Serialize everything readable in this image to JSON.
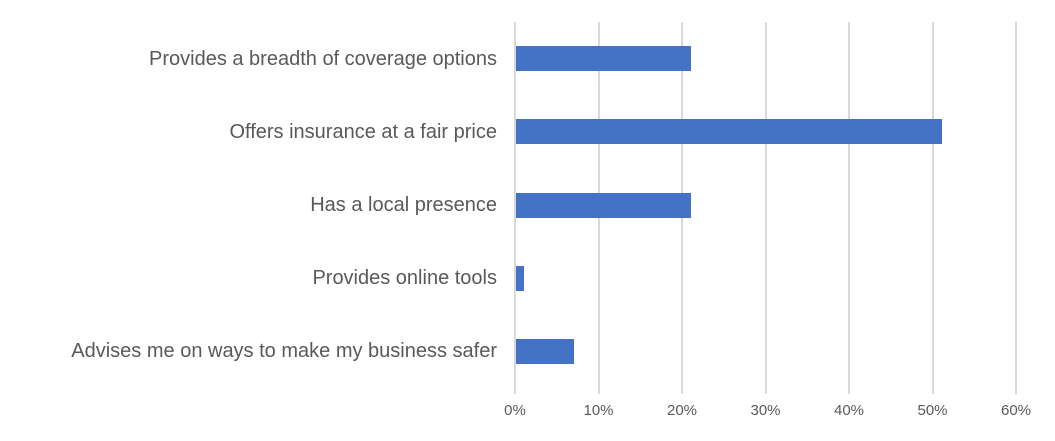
{
  "chart_data": {
    "type": "bar",
    "orientation": "horizontal",
    "title": "",
    "xlabel": "",
    "ylabel": "",
    "categories": [
      "Provides a breadth of coverage options",
      "Offers insurance at a fair price",
      "Has a local presence",
      "Provides online tools",
      "Advises me on ways to make my business safer"
    ],
    "values": [
      21,
      51,
      21,
      1,
      7
    ],
    "value_unit": "%",
    "xlim": [
      0,
      60
    ],
    "x_ticks": [
      {
        "value": 0,
        "label": "0%"
      },
      {
        "value": 10,
        "label": "10%"
      },
      {
        "value": 20,
        "label": "20%"
      },
      {
        "value": 30,
        "label": "30%"
      },
      {
        "value": 40,
        "label": "40%"
      },
      {
        "value": 50,
        "label": "50%"
      },
      {
        "value": 60,
        "label": "60%"
      }
    ],
    "grid": "vertical-major",
    "legend": "none",
    "colors": {
      "bar": "#4472C4",
      "gridline": "#D9D9D9",
      "label_text": "#595959",
      "tick_text": "#595959",
      "background": "#FFFFFF"
    }
  }
}
